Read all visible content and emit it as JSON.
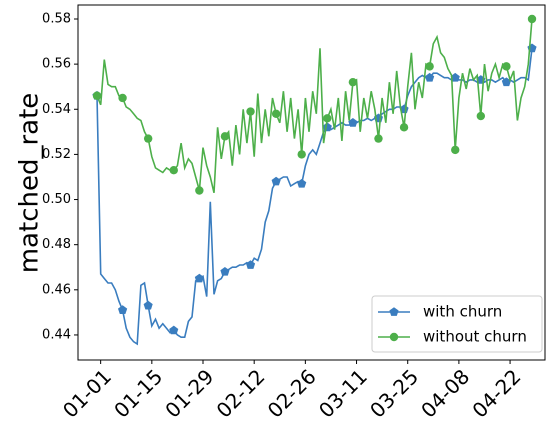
{
  "chart_data": {
    "type": "line",
    "y_label": "matched_rate",
    "x": [
      "12-31",
      "01-01",
      "01-02",
      "01-03",
      "01-04",
      "01-05",
      "01-06",
      "01-07",
      "01-08",
      "01-09",
      "01-10",
      "01-11",
      "01-12",
      "01-13",
      "01-14",
      "01-15",
      "01-16",
      "01-17",
      "01-18",
      "01-19",
      "01-20",
      "01-21",
      "01-22",
      "01-23",
      "01-24",
      "01-25",
      "01-26",
      "01-27",
      "01-28",
      "01-29",
      "01-30",
      "01-31",
      "02-01",
      "02-02",
      "02-03",
      "02-04",
      "02-05",
      "02-06",
      "02-07",
      "02-08",
      "02-09",
      "02-10",
      "02-11",
      "02-12",
      "02-13",
      "02-14",
      "02-15",
      "02-16",
      "02-17",
      "02-18",
      "02-19",
      "02-20",
      "02-21",
      "02-22",
      "02-23",
      "02-24",
      "02-25",
      "02-26",
      "02-27",
      "02-28",
      "02-29",
      "03-01",
      "03-02",
      "03-03",
      "03-04",
      "03-05",
      "03-06",
      "03-07",
      "03-08",
      "03-09",
      "03-10",
      "03-11",
      "03-12",
      "03-13",
      "03-14",
      "03-15",
      "03-16",
      "03-17",
      "03-18",
      "03-19",
      "03-20",
      "03-21",
      "03-22",
      "03-23",
      "03-24",
      "03-25",
      "03-26",
      "03-27",
      "03-28",
      "03-29",
      "03-30",
      "03-31",
      "04-01",
      "04-02",
      "04-03",
      "04-04",
      "04-05",
      "04-06",
      "04-07",
      "04-08",
      "04-09",
      "04-10",
      "04-11",
      "04-12",
      "04-13",
      "04-14",
      "04-15",
      "04-16",
      "04-17",
      "04-18",
      "04-19",
      "04-20",
      "04-21",
      "04-22",
      "04-23",
      "04-24",
      "04-25",
      "04-26",
      "04-27",
      "04-28"
    ],
    "series": [
      {
        "name": "with churn",
        "color": "#3a7dbf",
        "marker": "pentagon",
        "values": [
          0.546,
          0.467,
          0.465,
          0.463,
          0.463,
          0.46,
          0.455,
          0.451,
          0.443,
          0.439,
          0.437,
          0.436,
          0.462,
          0.463,
          0.453,
          0.444,
          0.447,
          0.443,
          0.445,
          0.443,
          0.441,
          0.442,
          0.44,
          0.439,
          0.439,
          0.446,
          0.448,
          0.464,
          0.465,
          0.466,
          0.457,
          0.499,
          0.458,
          0.464,
          0.465,
          0.468,
          0.469,
          0.47,
          0.47,
          0.471,
          0.471,
          0.472,
          0.471,
          0.474,
          0.473,
          0.478,
          0.49,
          0.495,
          0.505,
          0.508,
          0.509,
          0.51,
          0.51,
          0.506,
          0.507,
          0.508,
          0.507,
          0.515,
          0.52,
          0.522,
          0.52,
          0.525,
          0.53,
          0.532,
          0.531,
          0.532,
          0.533,
          0.534,
          0.533,
          0.533,
          0.534,
          0.534,
          0.535,
          0.535,
          0.536,
          0.535,
          0.536,
          0.536,
          0.538,
          0.539,
          0.54,
          0.54,
          0.541,
          0.541,
          0.54,
          0.546,
          0.55,
          0.552,
          0.554,
          0.555,
          0.554,
          0.554,
          0.556,
          0.556,
          0.555,
          0.554,
          0.554,
          0.553,
          0.554,
          0.553,
          0.553,
          0.552,
          0.553,
          0.553,
          0.552,
          0.553,
          0.552,
          0.553,
          0.553,
          0.552,
          0.553,
          0.554,
          0.552,
          0.553,
          0.552,
          0.553,
          0.554,
          0.554,
          0.553,
          0.567
        ]
      },
      {
        "name": "without churn",
        "color": "#4daf4a",
        "marker": "circle",
        "values": [
          0.546,
          0.542,
          0.562,
          0.551,
          0.55,
          0.55,
          0.546,
          0.545,
          0.541,
          0.54,
          0.538,
          0.536,
          0.535,
          0.53,
          0.527,
          0.519,
          0.514,
          0.513,
          0.512,
          0.514,
          0.513,
          0.513,
          0.515,
          0.525,
          0.514,
          0.518,
          0.516,
          0.51,
          0.504,
          0.523,
          0.515,
          0.51,
          0.503,
          0.532,
          0.518,
          0.528,
          0.53,
          0.515,
          0.533,
          0.52,
          0.54,
          0.525,
          0.539,
          0.519,
          0.547,
          0.525,
          0.54,
          0.528,
          0.545,
          0.538,
          0.534,
          0.548,
          0.53,
          0.545,
          0.527,
          0.54,
          0.52,
          0.545,
          0.53,
          0.548,
          0.538,
          0.567,
          0.525,
          0.536,
          0.54,
          0.531,
          0.545,
          0.526,
          0.548,
          0.535,
          0.552,
          0.553,
          0.53,
          0.545,
          0.536,
          0.548,
          0.54,
          0.527,
          0.545,
          0.534,
          0.552,
          0.538,
          0.557,
          0.541,
          0.532,
          0.55,
          0.565,
          0.54,
          0.552,
          0.545,
          0.56,
          0.559,
          0.569,
          0.572,
          0.565,
          0.563,
          0.558,
          0.555,
          0.522,
          0.545,
          0.556,
          0.549,
          0.558,
          0.553,
          0.555,
          0.537,
          0.56,
          0.548,
          0.556,
          0.56,
          0.554,
          0.56,
          0.559,
          0.553,
          0.557,
          0.535,
          0.545,
          0.55,
          0.56,
          0.58
        ]
      }
    ],
    "markevery": 7,
    "xticks": [
      "01-01",
      "01-15",
      "01-29",
      "02-12",
      "02-26",
      "03-11",
      "03-25",
      "04-08",
      "04-22"
    ],
    "ylim": [
      0.4289,
      0.5862
    ],
    "yticks": [
      0.44,
      0.46,
      0.48,
      {
        "value": 0.5,
        "label": "0.50"
      },
      0.52,
      0.54,
      0.56,
      0.58
    ],
    "legend": "lower right"
  }
}
